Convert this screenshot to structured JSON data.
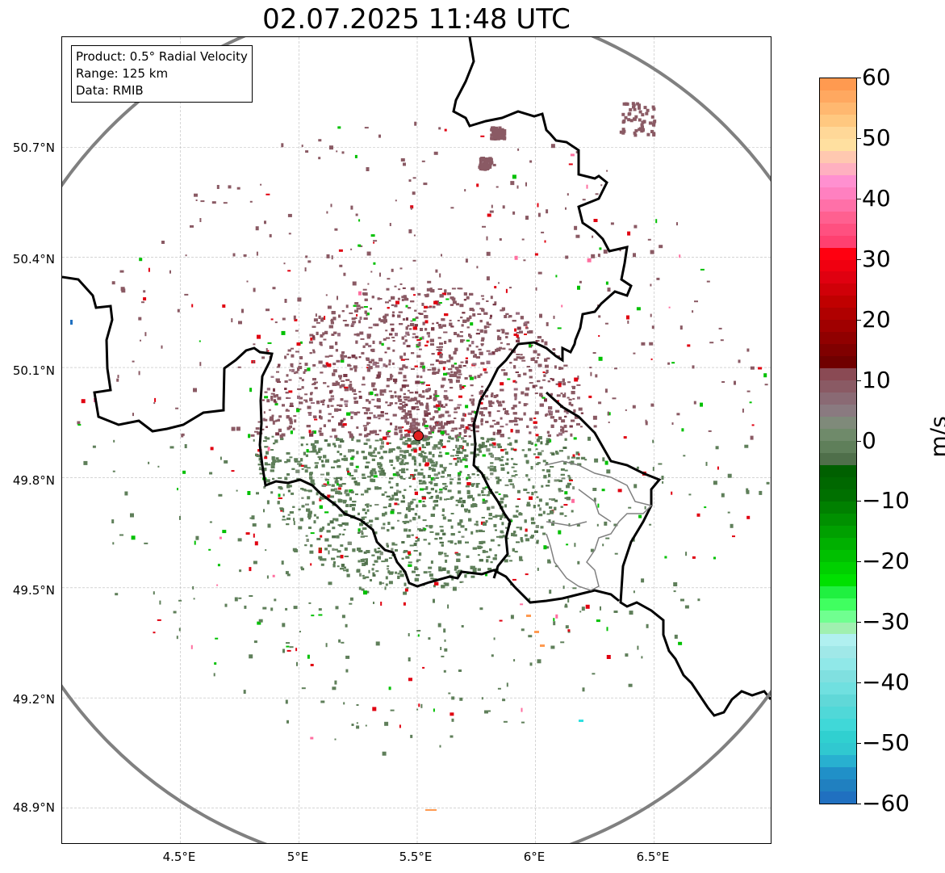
{
  "title": "02.07.2025 11:48 UTC",
  "info_box": {
    "product": "Product: 0.5° Radial Velocity",
    "range": "Range: 125 km",
    "data": "Data: RMIB"
  },
  "map": {
    "lon_range": [
      4.0,
      7.0
    ],
    "lat_range": [
      48.8,
      51.0
    ],
    "lon_ticks": [
      "4.5°E",
      "5°E",
      "5.5°E",
      "6°E",
      "6.5°E"
    ],
    "lat_ticks": [
      "50.7°N",
      "50.4°N",
      "50.1°N",
      "49.8°N",
      "49.5°N",
      "49.2°N",
      "48.9°N"
    ],
    "grid": true,
    "radar_site": {
      "lon": 5.505,
      "lat": 49.914,
      "color": "#e02020"
    },
    "range_ring_color": "#808080"
  },
  "colorbar": {
    "label": "m/s",
    "range": [
      -60,
      60
    ],
    "ticks": [
      "60",
      "50",
      "40",
      "30",
      "20",
      "10",
      "0",
      "−10",
      "−20",
      "−30",
      "−40",
      "−50",
      "−60"
    ],
    "colors": {
      "receding_strong": "#ff9a50",
      "receding_pink": "#ff6fa0",
      "receding_red": "#e00010",
      "near_zero_positive": "#8a5a64",
      "near_zero_negative": "#5f7f5a",
      "approaching_green": "#00c000",
      "approaching_cyan": "#30e0e0",
      "approaching_blue": "#2070c0"
    }
  }
}
